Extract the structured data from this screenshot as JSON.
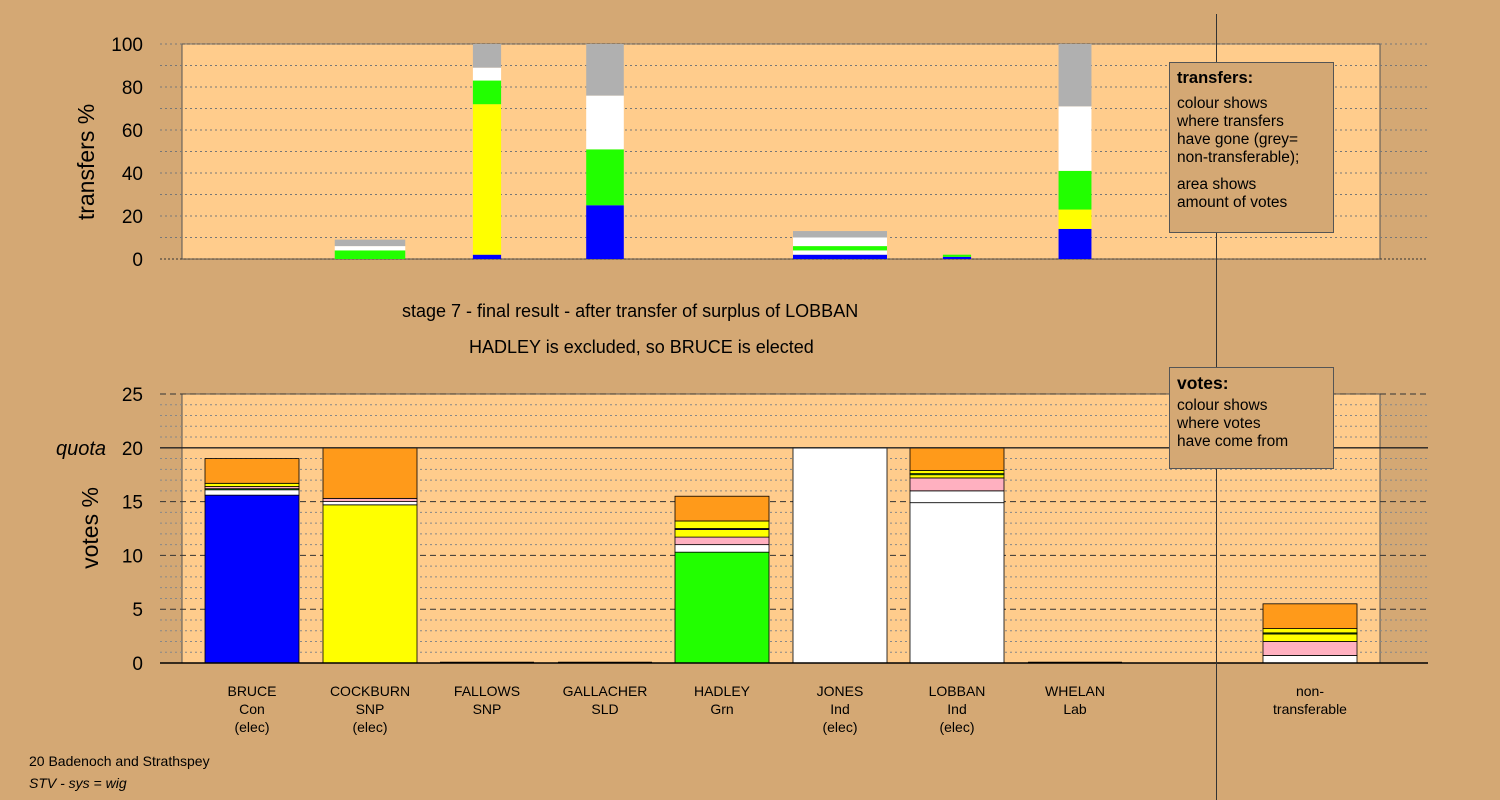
{
  "header": {
    "stage_line": "stage 7 - final result - after transfer of surplus of LOBBAN",
    "result_line": "HADLEY is excluded, so BRUCE is elected"
  },
  "legend_transfers": {
    "title": "transfers:",
    "lines_a": [
      "colour shows",
      "where transfers",
      "have gone (grey=",
      "non-transferable);"
    ],
    "lines_b": [
      "area shows",
      "amount of votes"
    ]
  },
  "legend_votes": {
    "title": "votes:",
    "lines": [
      "colour shows",
      "where votes",
      "have come from"
    ]
  },
  "footer": {
    "ward": "20 Badenoch and Strathspey",
    "system": "STV - sys = wig"
  },
  "colors": {
    "background": "#d4a874",
    "plot": "#ffcc8c",
    "Con": "#0000ff",
    "SNP": "#ffff00",
    "Grn": "#22ff00",
    "Ind": "#ffffff",
    "SLD": "#ffb0c0",
    "Lab": "#ff9a1a",
    "nontransferable": "#b0b0b0"
  },
  "candidates": [
    {
      "name": "BRUCE",
      "party": "Con",
      "status": "(elec)"
    },
    {
      "name": "COCKBURN",
      "party": "SNP",
      "status": "(elec)"
    },
    {
      "name": "FALLOWS",
      "party": "SNP",
      "status": ""
    },
    {
      "name": "GALLACHER",
      "party": "SLD",
      "status": ""
    },
    {
      "name": "HADLEY",
      "party": "Grn",
      "status": ""
    },
    {
      "name": "JONES",
      "party": "Ind",
      "status": "(elec)"
    },
    {
      "name": "LOBBAN",
      "party": "Ind",
      "status": "(elec)"
    },
    {
      "name": "WHELAN",
      "party": "Lab",
      "status": ""
    }
  ],
  "nontransferable_label": [
    "non-",
    "transferable"
  ],
  "chart_data": [
    {
      "type": "bar",
      "stacked": true,
      "ylabel": "transfers %",
      "ylim": [
        0,
        100
      ],
      "yticks": [
        0,
        20,
        40,
        60,
        80,
        100
      ],
      "grid": "dotted",
      "categories": [
        "BRUCE",
        "COCKBURN",
        "FALLOWS",
        "GALLACHER",
        "HADLEY",
        "JONES",
        "LOBBAN",
        "WHELAN"
      ],
      "bar_width_share_of_votes": {
        "COCKBURN": 0.75,
        "FALLOWS": 0.3,
        "GALLACHER": 0.4,
        "JONES": 1.0,
        "LOBBAN": 0.3,
        "WHELAN": 0.35
      },
      "bars": [
        {
          "category": "COCKBURN",
          "segments": [
            {
              "color": "Grn",
              "from": 0,
              "to": 4
            },
            {
              "color": "Ind",
              "from": 4,
              "to": 6
            },
            {
              "color": "nontransferable",
              "from": 6,
              "to": 9
            }
          ]
        },
        {
          "category": "FALLOWS",
          "segments": [
            {
              "color": "Con",
              "from": 0,
              "to": 2
            },
            {
              "color": "SNP",
              "from": 2,
              "to": 72
            },
            {
              "color": "Grn",
              "from": 72,
              "to": 83
            },
            {
              "color": "Ind",
              "from": 83,
              "to": 89
            },
            {
              "color": "nontransferable",
              "from": 89,
              "to": 100
            }
          ]
        },
        {
          "category": "GALLACHER",
          "segments": [
            {
              "color": "Con",
              "from": 0,
              "to": 25
            },
            {
              "color": "Grn",
              "from": 25,
              "to": 51
            },
            {
              "color": "Ind",
              "from": 51,
              "to": 76
            },
            {
              "color": "nontransferable",
              "from": 76,
              "to": 100
            }
          ]
        },
        {
          "category": "JONES",
          "segments": [
            {
              "color": "Con",
              "from": 0,
              "to": 2
            },
            {
              "color": "Ind",
              "from": 2,
              "to": 4
            },
            {
              "color": "Grn",
              "from": 4,
              "to": 6
            },
            {
              "color": "Ind",
              "from": 6,
              "to": 10
            },
            {
              "color": "nontransferable",
              "from": 10,
              "to": 13
            }
          ]
        },
        {
          "category": "LOBBAN",
          "segments": [
            {
              "color": "Con",
              "from": 0,
              "to": 1
            },
            {
              "color": "Grn",
              "from": 1,
              "to": 2
            }
          ]
        },
        {
          "category": "WHELAN",
          "segments": [
            {
              "color": "Con",
              "from": 0,
              "to": 14
            },
            {
              "color": "SNP",
              "from": 14,
              "to": 23
            },
            {
              "color": "Grn",
              "from": 23,
              "to": 41
            },
            {
              "color": "Ind",
              "from": 41,
              "to": 71
            },
            {
              "color": "nontransferable",
              "from": 71,
              "to": 100
            }
          ]
        }
      ]
    },
    {
      "type": "bar",
      "stacked": true,
      "ylabel": "votes %",
      "ylim": [
        0,
        25
      ],
      "yticks": [
        0,
        5,
        10,
        15,
        20,
        25
      ],
      "quota": 20,
      "quota_label": "quota",
      "grid": "dotted",
      "categories": [
        "BRUCE",
        "COCKBURN",
        "FALLOWS",
        "GALLACHER",
        "HADLEY",
        "JONES",
        "LOBBAN",
        "WHELAN",
        "non-transferable"
      ],
      "bars": [
        {
          "category": "BRUCE",
          "segments": [
            {
              "color": "Con",
              "from": 0,
              "to": 15.6
            },
            {
              "color": "Ind",
              "from": 15.6,
              "to": 16.1
            },
            {
              "color": "Grn",
              "from": 16.1,
              "to": 16.2
            },
            {
              "color": "SLD",
              "from": 16.2,
              "to": 16.4
            },
            {
              "color": "SNP",
              "from": 16.4,
              "to": 16.7
            },
            {
              "color": "Lab",
              "from": 16.7,
              "to": 19.0
            }
          ]
        },
        {
          "category": "COCKBURN",
          "segments": [
            {
              "color": "SNP",
              "from": 0,
              "to": 14.7
            },
            {
              "color": "Ind",
              "from": 14.7,
              "to": 15.0
            },
            {
              "color": "SLD",
              "from": 15.0,
              "to": 15.3
            },
            {
              "color": "Lab",
              "from": 15.3,
              "to": 20.0
            }
          ]
        },
        {
          "category": "FALLOWS",
          "segments": []
        },
        {
          "category": "GALLACHER",
          "segments": []
        },
        {
          "category": "HADLEY",
          "segments": [
            {
              "color": "Grn",
              "from": 0,
              "to": 10.3
            },
            {
              "color": "Ind",
              "from": 10.3,
              "to": 11.0
            },
            {
              "color": "SLD",
              "from": 11.0,
              "to": 11.7
            },
            {
              "color": "SNP",
              "from": 11.7,
              "to": 12.4
            },
            {
              "color": "Con",
              "from": 12.4,
              "to": 12.5
            },
            {
              "color": "SNP",
              "from": 12.5,
              "to": 13.2
            },
            {
              "color": "Lab",
              "from": 13.2,
              "to": 15.5
            }
          ]
        },
        {
          "category": "JONES",
          "segments": [
            {
              "color": "Ind",
              "from": 0,
              "to": 20.0
            }
          ]
        },
        {
          "category": "LOBBAN",
          "segments": [
            {
              "color": "Ind",
              "from": 0,
              "to": 14.9
            },
            {
              "color": "Ind",
              "from": 14.9,
              "to": 16.0
            },
            {
              "color": "SLD",
              "from": 16.0,
              "to": 17.2
            },
            {
              "color": "SNP",
              "from": 17.2,
              "to": 17.5
            },
            {
              "color": "Grn",
              "from": 17.5,
              "to": 17.6
            },
            {
              "color": "SNP",
              "from": 17.6,
              "to": 17.9
            },
            {
              "color": "Lab",
              "from": 17.9,
              "to": 20.0
            }
          ]
        },
        {
          "category": "WHELAN",
          "segments": []
        },
        {
          "category": "non-transferable",
          "segments": [
            {
              "color": "Ind",
              "from": 0,
              "to": 0.7
            },
            {
              "color": "SLD",
              "from": 0.7,
              "to": 2.0
            },
            {
              "color": "SNP",
              "from": 2.0,
              "to": 2.7
            },
            {
              "color": "Grn",
              "from": 2.7,
              "to": 2.8
            },
            {
              "color": "SNP",
              "from": 2.8,
              "to": 3.2
            },
            {
              "color": "Lab",
              "from": 3.2,
              "to": 5.5
            }
          ]
        }
      ]
    }
  ]
}
